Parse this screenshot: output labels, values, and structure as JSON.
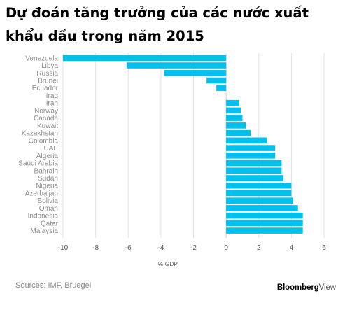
{
  "title": "Dự đoán tăng trưởng của các nước xuất khẩu dầu trong năm 2015",
  "source": "Sources: IMF, Bruegel",
  "brand": {
    "part1": "Bloomberg",
    "part2": "View"
  },
  "colors": {
    "bar": "#00c0f0",
    "grid": "#e2e2e2",
    "zero_line": "#cccccc"
  },
  "chart_data": {
    "type": "bar",
    "orientation": "horizontal",
    "title": "Dự đoán tăng trưởng của các nước xuất khẩu dầu trong năm 2015",
    "xlabel": "% GDP",
    "ylabel": "",
    "xlim": [
      -10,
      6.5
    ],
    "xticks": [
      -10,
      -8,
      -6,
      -4,
      -2,
      0,
      2,
      4,
      6
    ],
    "grid": true,
    "categories": [
      "Venezuela",
      "Libya",
      "Russia",
      "Brunei",
      "Ecuador",
      "Iraq",
      "Iran",
      "Norway",
      "Canada",
      "Kuwait",
      "Kazakhstan",
      "Colombia",
      "UAE",
      "Algeria",
      "Saudi Arabia",
      "Bahrain",
      "Sudan",
      "Nigeria",
      "Azerbaijan",
      "Bolivia",
      "Oman",
      "Indonesia",
      "Qatar",
      "Malaysia"
    ],
    "values": [
      -10,
      -6.1,
      -3.8,
      -1.2,
      -0.6,
      0,
      0.8,
      0.9,
      1.0,
      1.2,
      1.5,
      2.5,
      3.0,
      3.0,
      3.4,
      3.4,
      3.5,
      4.0,
      4.0,
      4.1,
      4.4,
      4.7,
      4.7,
      4.7
    ]
  }
}
